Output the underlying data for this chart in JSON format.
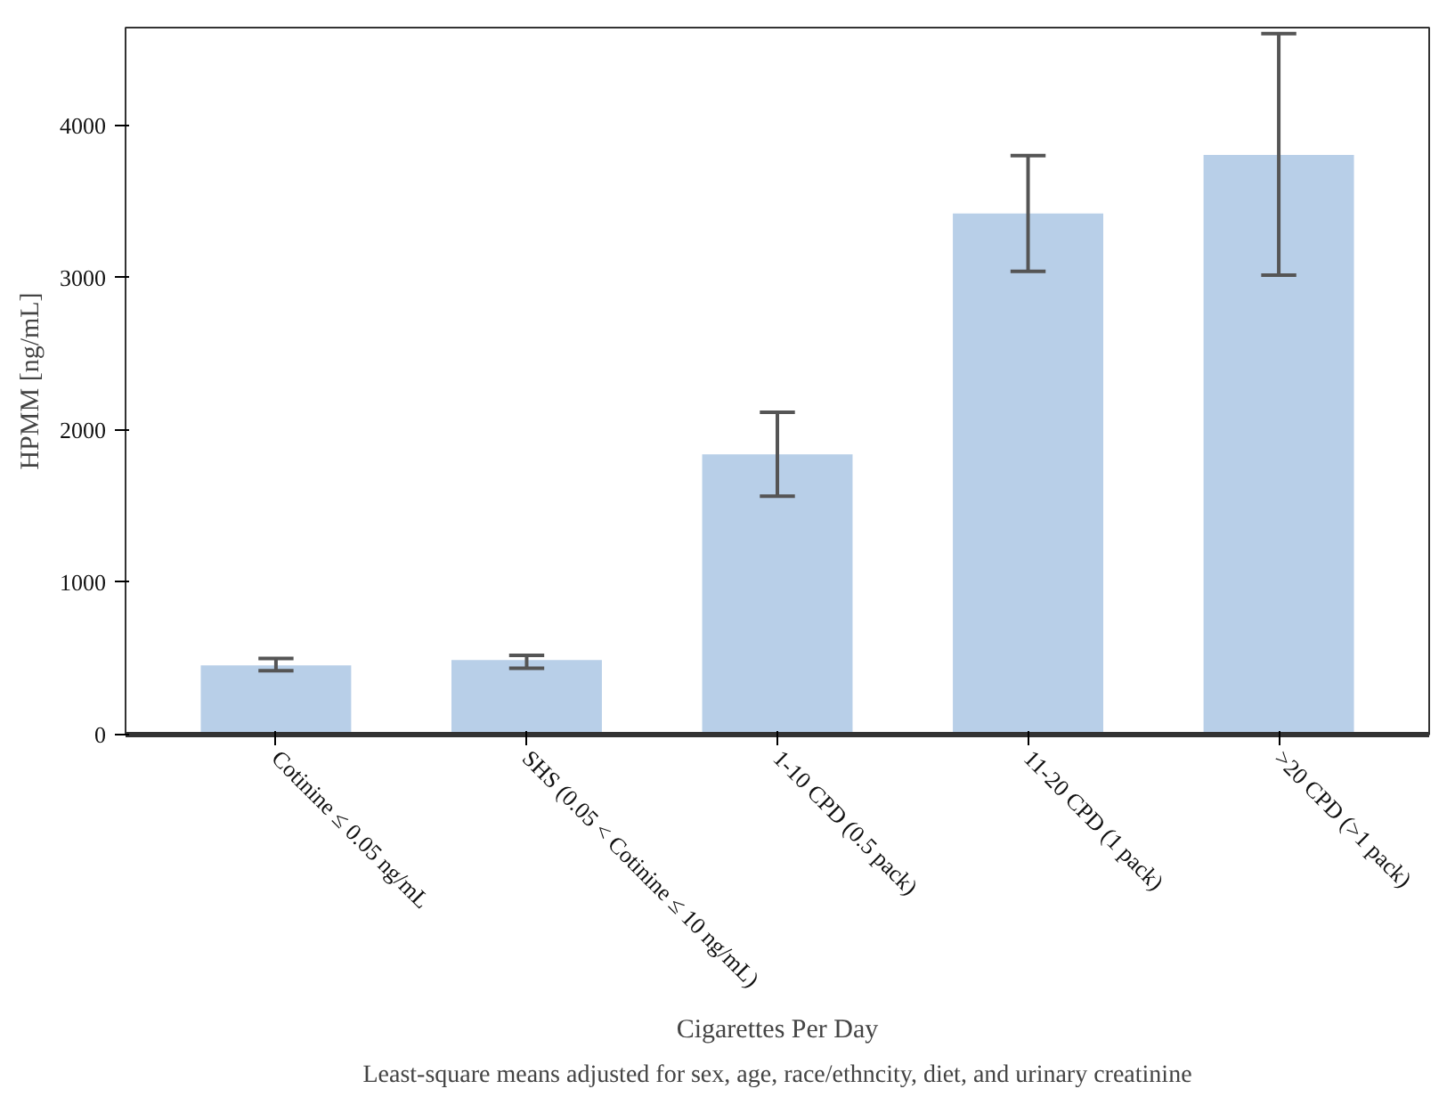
{
  "chart_data": {
    "type": "bar",
    "xlabel": "Cigarettes Per Day",
    "ylabel": "HPMM [ng/mL]",
    "categories": [
      "Cotinine ≤ 0.05 ng/mL",
      "SHS (0.05 < Cotinine ≤ 10 ng/mL)",
      "1-10 CPD (0.5 pack)",
      "11-20 CPD (1 pack)",
      ">20 CPD (>1 pack)"
    ],
    "values": [
      455,
      490,
      1840,
      3420,
      3805
    ],
    "errors": [
      [
        420,
        500
      ],
      [
        435,
        520
      ],
      [
        1565,
        2115
      ],
      [
        3040,
        3800
      ],
      [
        3015,
        4600
      ]
    ],
    "color": "#b8cfe8",
    "ylim": [
      0,
      4640
    ],
    "yticks": [
      0,
      1000,
      2000,
      3000,
      4000
    ],
    "grid": false,
    "annotations": [
      "Least-square means adjusted for sex, age, race/ethncity, diet, and urinary creatinine"
    ]
  }
}
